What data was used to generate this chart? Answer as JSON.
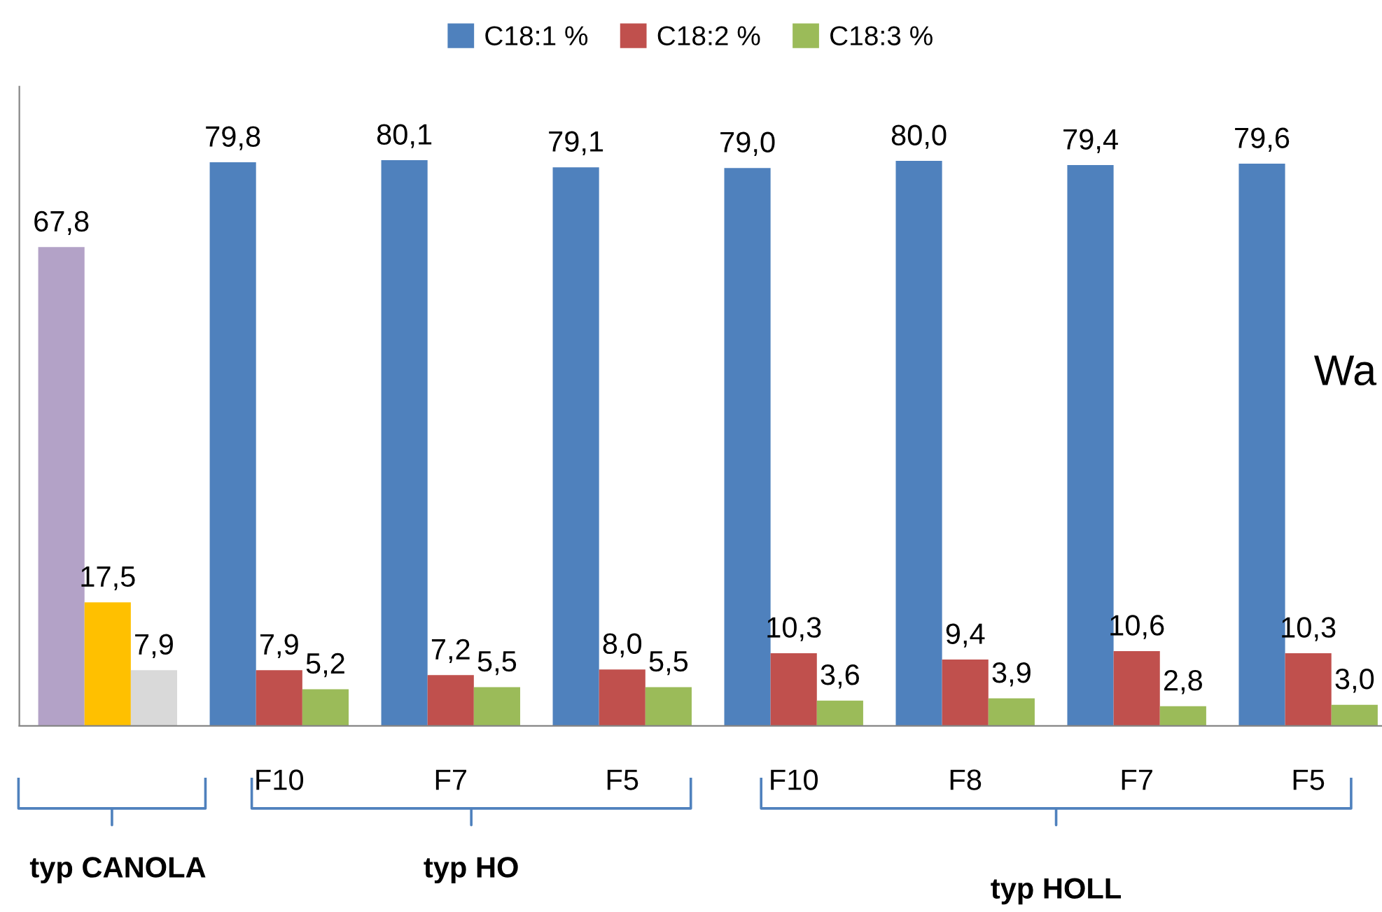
{
  "chart_data": {
    "type": "bar",
    "categories": [
      null,
      "F10",
      "F7",
      "F5",
      "F10",
      "F8",
      "F7",
      "F5"
    ],
    "series": [
      {
        "name": "C18:1 %",
        "color": "#4f81bd",
        "colors": [
          "#b3a2c7",
          "#4f81bd",
          "#4f81bd",
          "#4f81bd",
          "#4f81bd",
          "#4f81bd",
          "#4f81bd",
          "#4f81bd"
        ],
        "values": [
          67.8,
          79.8,
          80.1,
          79.1,
          79.0,
          80.0,
          79.4,
          79.6
        ],
        "value_labels": [
          "67,8",
          "79,8",
          "80,1",
          "79,1",
          "79,0",
          "80,0",
          "79,4",
          "79,6"
        ]
      },
      {
        "name": "C18:2 %",
        "color": "#c0504d",
        "colors": [
          "#ffc000",
          "#c0504d",
          "#c0504d",
          "#c0504d",
          "#c0504d",
          "#c0504d",
          "#c0504d",
          "#c0504d"
        ],
        "values": [
          17.5,
          7.9,
          7.2,
          8.0,
          10.3,
          9.4,
          10.6,
          10.3
        ],
        "value_labels": [
          "17,5",
          "7,9",
          "7,2",
          "8,0",
          "10,3",
          "9,4",
          "10,6",
          "10,3"
        ]
      },
      {
        "name": "C18:3 %",
        "color": "#9bbb59",
        "colors": [
          "#d9d9d9",
          "#9bbb59",
          "#9bbb59",
          "#9bbb59",
          "#9bbb59",
          "#9bbb59",
          "#9bbb59",
          "#9bbb59"
        ],
        "values": [
          7.9,
          5.2,
          5.5,
          5.5,
          3.6,
          3.9,
          2.8,
          3.0
        ],
        "value_labels": [
          "7,9",
          "5,2",
          "5,5",
          "5,5",
          "3,6",
          "3,9",
          "2,8",
          "3,0"
        ]
      }
    ],
    "annotations": [
      "typ CANOLA",
      "typ HO",
      "typ HOLL",
      "Wa"
    ],
    "legend": "top",
    "grid": false
  }
}
